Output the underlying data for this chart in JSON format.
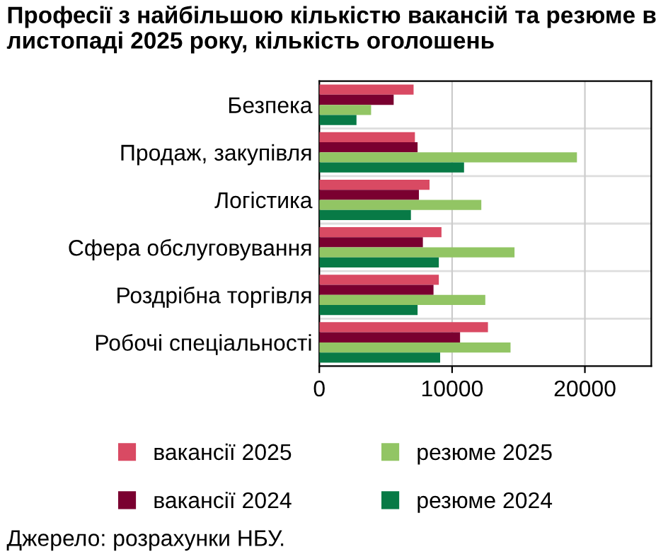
{
  "chart_data": {
    "type": "bar",
    "orientation": "horizontal",
    "title": "Професії з найбільшою кількістю вакансій та резюме в листопаді 2025 року, кількість оголошень",
    "categories": [
      "Безпека",
      "Продаж, закупівля",
      "Логістика",
      "Сфера обслуговування",
      "Роздрібна торгівля",
      "Робочі спеціальності"
    ],
    "series": [
      {
        "name": "вакансії 2025",
        "color": "#d94a63",
        "values": [
          7100,
          7200,
          8300,
          9200,
          9000,
          12700
        ]
      },
      {
        "name": "вакансії 2024",
        "color": "#7a0030",
        "values": [
          5600,
          7400,
          7500,
          7800,
          8600,
          10600
        ]
      },
      {
        "name": "резюме 2025",
        "color": "#92c564",
        "values": [
          3900,
          19400,
          12200,
          14700,
          12500,
          14400
        ]
      },
      {
        "name": "резюме 2024",
        "color": "#087a46",
        "values": [
          2800,
          10900,
          6900,
          9000,
          7400,
          9100
        ]
      }
    ],
    "xlim": [
      0,
      25000
    ],
    "xticks": [
      0,
      10000,
      20000
    ],
    "grid": "x",
    "legend": "bottom",
    "annotations": [
      "Джерело: розрахунки НБУ."
    ]
  }
}
